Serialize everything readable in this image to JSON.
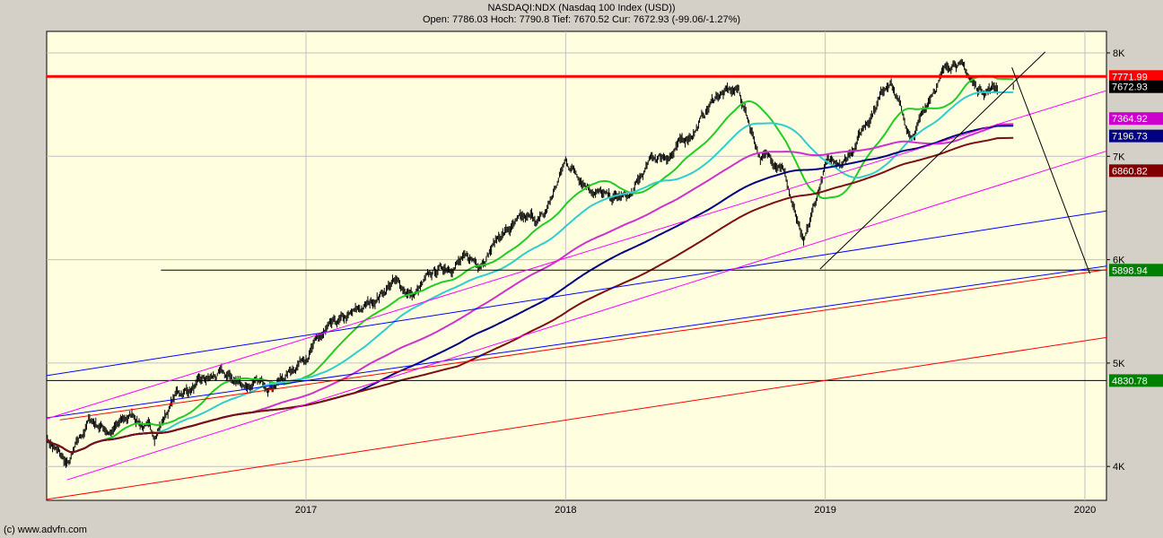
{
  "header": {
    "title": "NASDAQI:NDX (Nasdaq 100 Index (USD))",
    "quote": "Open: 7786.03 Hoch: 7790.8 Tief: 7670.52 Cur: 7672.93 (-99.06/-1.27%)"
  },
  "footer": {
    "copyright": "(c) www.advfn.com"
  },
  "chart_data": {
    "type": "line",
    "style": "ohlc-bars",
    "x_range": [
      "2016-01-01",
      "2020-02-03"
    ],
    "ylim": [
      3700,
      8200
    ],
    "grid": true,
    "background": "#ffffe0",
    "x_ticks": [
      "2017",
      "2018",
      "2019",
      "2020"
    ],
    "y_ticks": [
      {
        "value": 8000,
        "label": "8K"
      },
      {
        "value": 7000,
        "label": "7K"
      },
      {
        "value": 6000,
        "label": "6K"
      },
      {
        "value": 5000,
        "label": "5K"
      },
      {
        "value": 4000,
        "label": "4K"
      }
    ],
    "price_monthly": [
      [
        "2016-01",
        4280
      ],
      [
        "2016-02",
        4000
      ],
      [
        "2016-03",
        4450
      ],
      [
        "2016-04",
        4340
      ],
      [
        "2016-05",
        4500
      ],
      [
        "2016-06",
        4300
      ],
      [
        "2016-07",
        4700
      ],
      [
        "2016-08",
        4780
      ],
      [
        "2016-09",
        4880
      ],
      [
        "2016-10",
        4800
      ],
      [
        "2016-11",
        4780
      ],
      [
        "2016-12",
        4860
      ],
      [
        "2017-01",
        5100
      ],
      [
        "2017-02",
        5300
      ],
      [
        "2017-03",
        5430
      ],
      [
        "2017-04",
        5580
      ],
      [
        "2017-05",
        5790
      ],
      [
        "2017-06",
        5650
      ],
      [
        "2017-07",
        5880
      ],
      [
        "2017-08",
        5990
      ],
      [
        "2017-09",
        5980
      ],
      [
        "2017-10",
        6250
      ],
      [
        "2017-11",
        6360
      ],
      [
        "2017-12",
        6400
      ],
      [
        "2018-01",
        6950
      ],
      [
        "2018-02",
        6750
      ],
      [
        "2018-03",
        6580
      ],
      [
        "2018-04",
        6600
      ],
      [
        "2018-05",
        6970
      ],
      [
        "2018-06",
        7040
      ],
      [
        "2018-07",
        7270
      ],
      [
        "2018-08",
        7600
      ],
      [
        "2018-09",
        7630
      ],
      [
        "2018-10",
        7000
      ],
      [
        "2018-11",
        6950
      ],
      [
        "2018-12",
        6100
      ],
      [
        "2019-01",
        6900
      ],
      [
        "2019-02",
        7000
      ],
      [
        "2019-03",
        7380
      ],
      [
        "2019-04",
        7780
      ],
      [
        "2019-05",
        7130
      ],
      [
        "2019-06",
        7670
      ],
      [
        "2019-07",
        7960
      ],
      [
        "2019-08",
        7650
      ],
      [
        "2019-09",
        7672.93
      ]
    ],
    "moving_average_colors": [
      "#22cc22",
      "#33cccc",
      "#cc33cc",
      "#000080",
      "#7a1010"
    ],
    "horizontal_lines": [
      {
        "value": 7771.99,
        "color": "#ff0000",
        "from": "2016-01-01"
      },
      {
        "value": 5898.94,
        "color": "#000000",
        "from": "2016-06-10"
      },
      {
        "value": 4830.78,
        "color": "#000000",
        "from": "2016-01-01"
      }
    ],
    "trend_lines": [
      {
        "color": "#ff0000",
        "p1": [
          "2016-01-01",
          3681
        ],
        "p2": [
          "2020-02-03",
          5250
        ]
      },
      {
        "color": "#ff0000",
        "p1": [
          "2016-01-20",
          4450
        ],
        "p2": [
          "2020-02-03",
          5905
        ]
      },
      {
        "color": "#0000ff",
        "p1": [
          "2016-01-01",
          4470
        ],
        "p2": [
          "2020-02-03",
          5940
        ]
      },
      {
        "color": "#0000ff",
        "p1": [
          "2016-01-01",
          4878
        ],
        "p2": [
          "2020-02-03",
          6474
        ]
      },
      {
        "color": "#ff00ff",
        "p1": [
          "2016-01-30",
          3870
        ],
        "p2": [
          "2020-02-03",
          7055
        ]
      },
      {
        "color": "#ff00ff",
        "p1": [
          "2016-01-01",
          4460
        ],
        "p2": [
          "2020-02-03",
          7640
        ]
      },
      {
        "color": "#000000",
        "p1": [
          "2018-12-24",
          5910
        ],
        "p2": [
          "2019-11-06",
          8010
        ]
      },
      {
        "color": "#000000",
        "p1": [
          "2019-09-20",
          7860
        ],
        "p2": [
          "2020-01-08",
          5865
        ]
      }
    ],
    "value_labels": [
      {
        "value": 7771.99,
        "text": "7771.99",
        "color": "#ff0000"
      },
      {
        "value": 7672.93,
        "text": "7672.93",
        "color": "#000000"
      },
      {
        "value": 7364.92,
        "text": "7364.92",
        "color": "#cc00cc"
      },
      {
        "value": 7196.73,
        "text": "7196.73",
        "color": "#000080"
      },
      {
        "value": 6860.82,
        "text": "6860.82",
        "color": "#800000"
      },
      {
        "value": 5898.94,
        "text": "5898.94",
        "color": "#008000"
      },
      {
        "value": 4830.78,
        "text": "4830.78",
        "color": "#008000"
      }
    ]
  }
}
